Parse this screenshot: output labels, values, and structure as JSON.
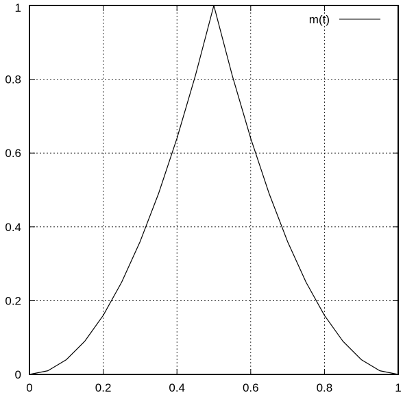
{
  "chart_data": {
    "type": "line",
    "title": "",
    "xlabel": "",
    "ylabel": "",
    "xlim": [
      0,
      1
    ],
    "ylim": [
      0,
      1
    ],
    "grid": true,
    "grid_style": "dotted",
    "legend_position": "top-right",
    "xticks": [
      "0",
      "0.2",
      "0.4",
      "0.6",
      "0.8",
      "1"
    ],
    "yticks": [
      "0",
      "0.2",
      "0.4",
      "0.6",
      "0.8",
      "1"
    ],
    "series": [
      {
        "name": "m(t)",
        "color": "#000000",
        "x": [
          0,
          0.05,
          0.1,
          0.15,
          0.2,
          0.25,
          0.3,
          0.35,
          0.4,
          0.45,
          0.5,
          0.55,
          0.6,
          0.65,
          0.7,
          0.75,
          0.8,
          0.85,
          0.9,
          0.95,
          1
        ],
        "y": [
          0,
          0.01,
          0.04,
          0.09,
          0.16,
          0.25,
          0.36,
          0.49,
          0.64,
          0.81,
          1,
          0.81,
          0.64,
          0.49,
          0.36,
          0.25,
          0.16,
          0.09,
          0.04,
          0.01,
          0
        ]
      }
    ]
  }
}
